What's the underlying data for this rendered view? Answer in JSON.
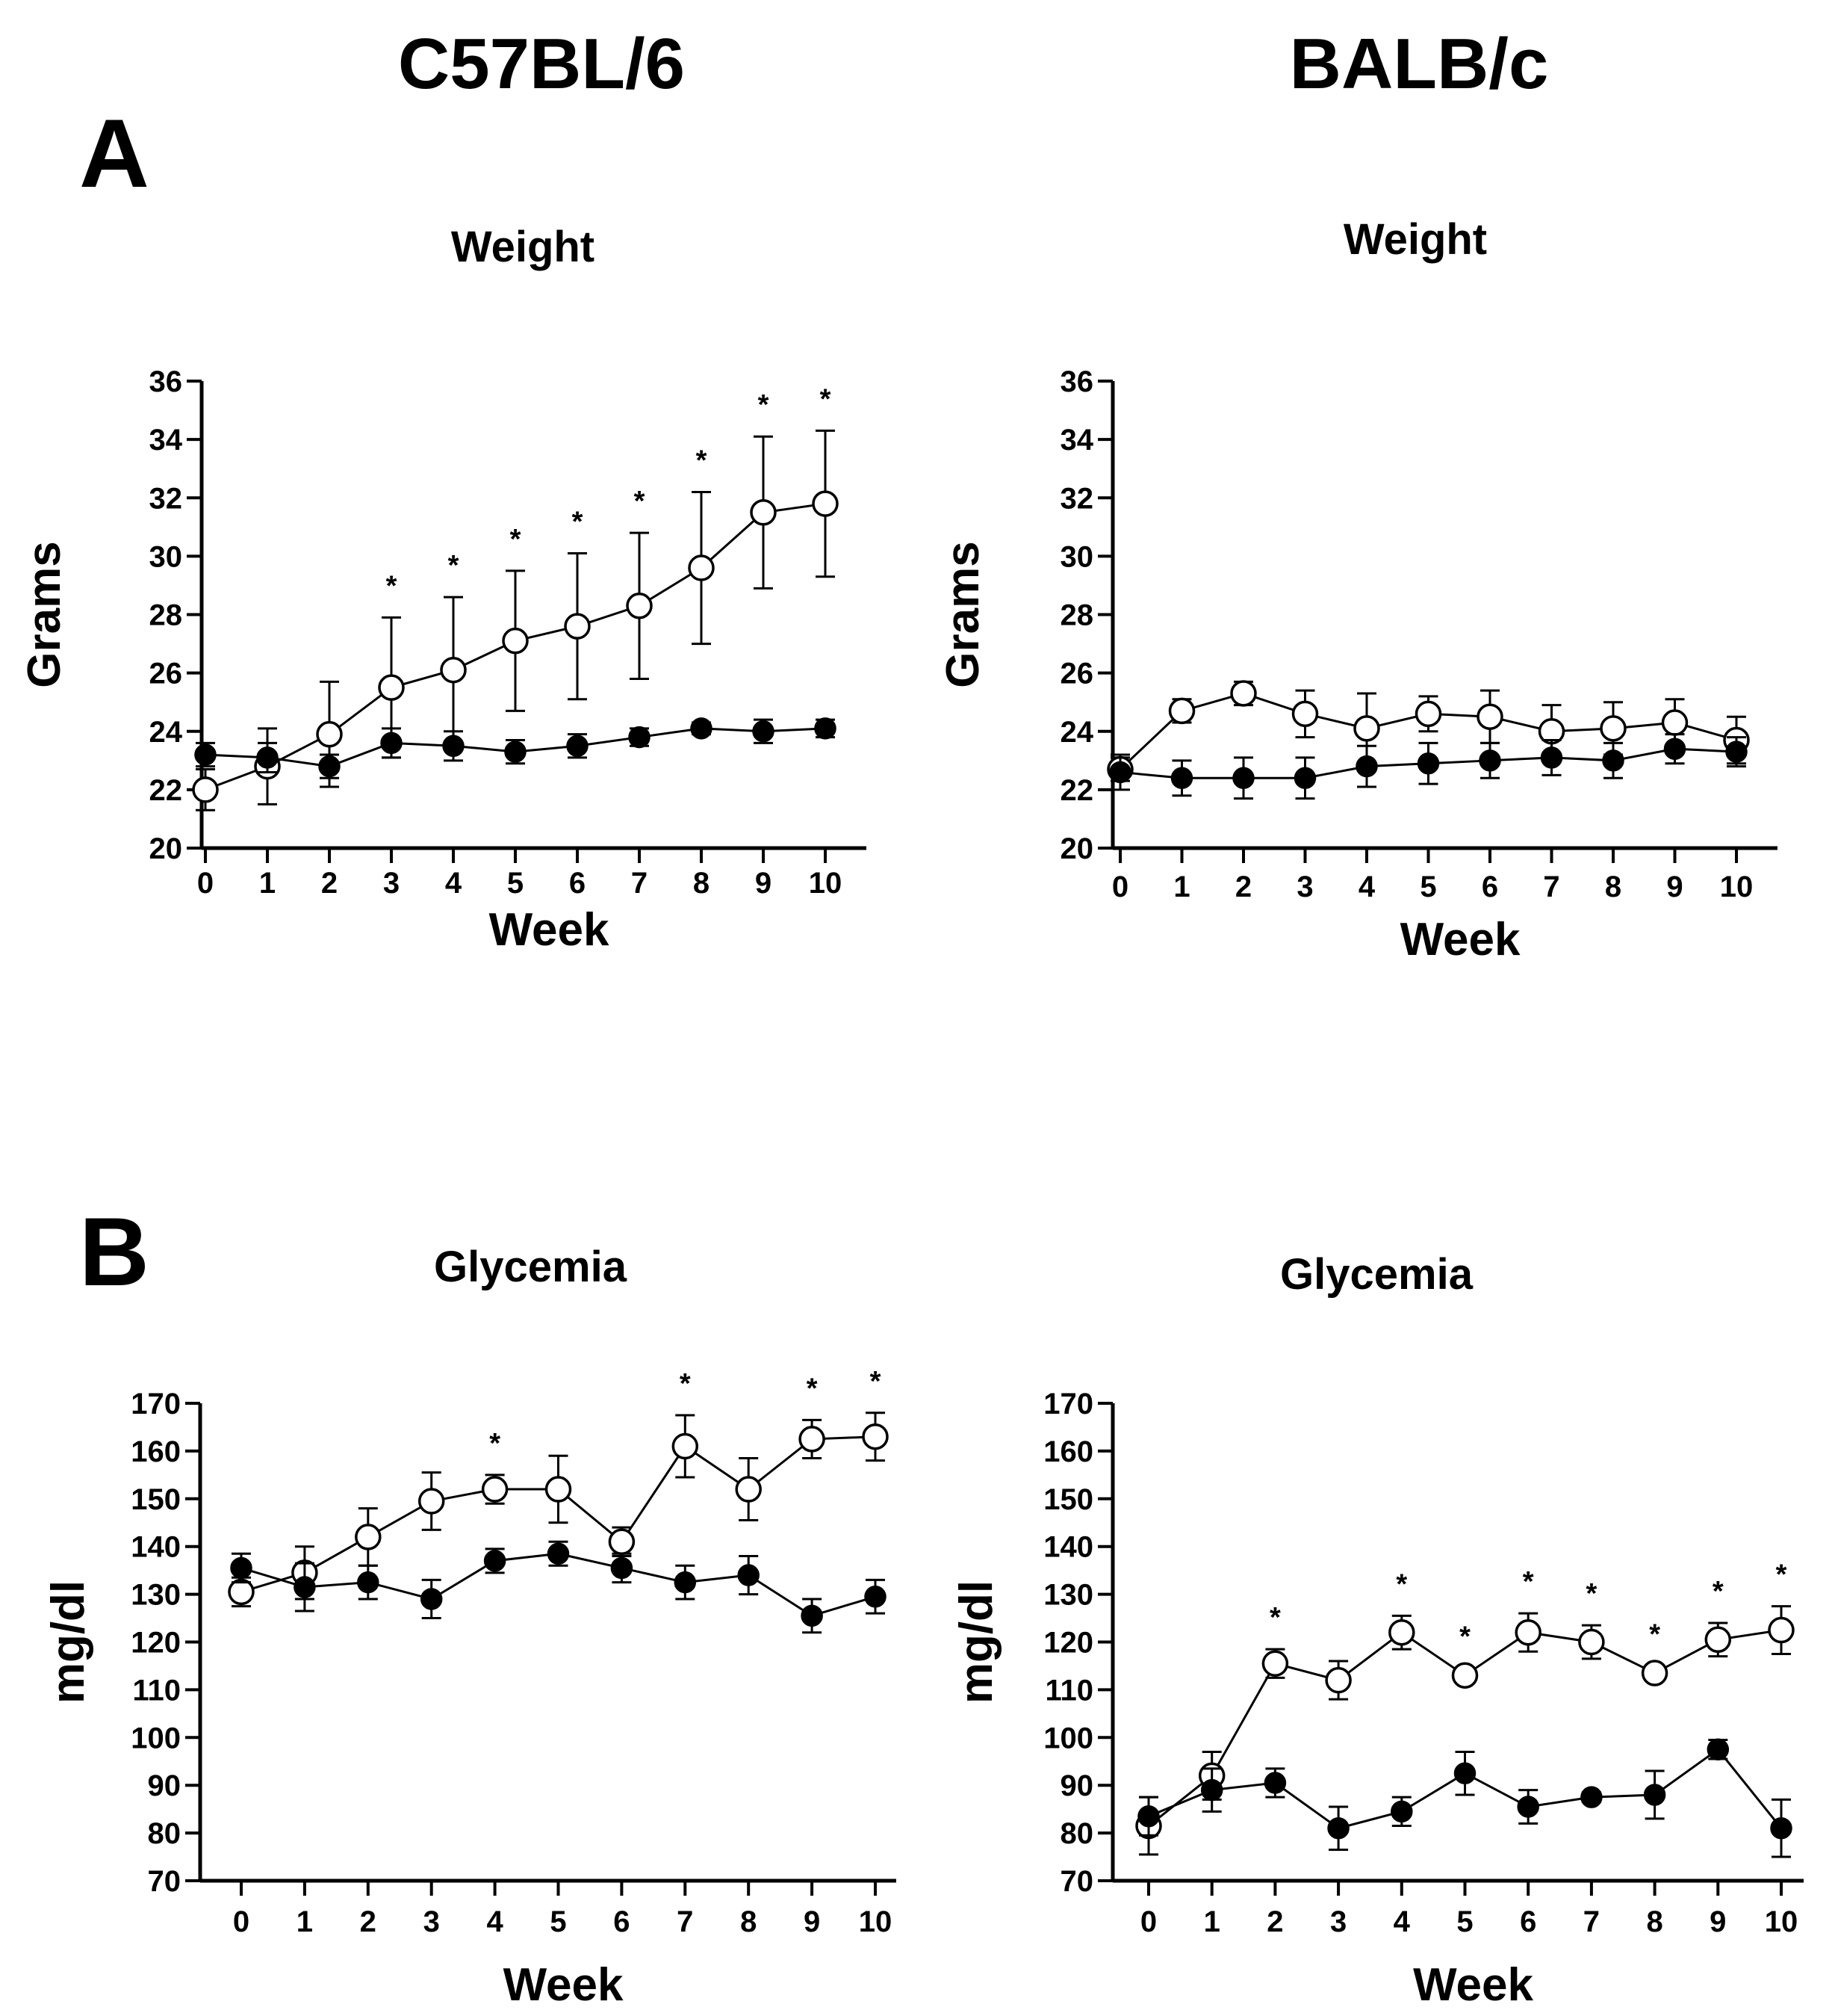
{
  "figure": {
    "column_titles": [
      "C57BL/6",
      "BALB/c"
    ],
    "panel_letters": [
      "A",
      "B"
    ]
  },
  "chart_data": [
    {
      "id": "c57-weight",
      "type": "line",
      "title": "Weight",
      "xlabel": "Week",
      "ylabel": "Grams",
      "x": [
        0,
        1,
        2,
        3,
        4,
        5,
        6,
        7,
        8,
        9,
        10
      ],
      "ylim": [
        20,
        36
      ],
      "yticks": [
        20,
        22,
        24,
        26,
        28,
        30,
        32,
        34,
        36
      ],
      "grid": false,
      "legend": "none",
      "series": [
        {
          "marker": "open-circle",
          "values": [
            22.0,
            22.8,
            23.9,
            25.5,
            26.1,
            27.1,
            27.6,
            28.3,
            29.6,
            31.5,
            31.8
          ],
          "errors": [
            0.7,
            1.3,
            1.8,
            2.4,
            2.5,
            2.4,
            2.5,
            2.5,
            2.6,
            2.6,
            2.5
          ]
        },
        {
          "marker": "filled-circle",
          "values": [
            23.2,
            23.1,
            22.8,
            23.6,
            23.5,
            23.3,
            23.5,
            23.8,
            24.1,
            24.0,
            24.1
          ],
          "errors": [
            0.4,
            0.5,
            0.4,
            0.5,
            0.5,
            0.4,
            0.4,
            0.3,
            0.2,
            0.4,
            0.3
          ]
        }
      ],
      "significance": [
        "",
        "",
        "",
        "*",
        "*",
        "*",
        "*",
        "*",
        "*",
        "*",
        "*"
      ]
    },
    {
      "id": "balbc-weight",
      "type": "line",
      "title": "Weight",
      "xlabel": "Week",
      "ylabel": "Grams",
      "x": [
        0,
        1,
        2,
        3,
        4,
        5,
        6,
        7,
        8,
        9,
        10
      ],
      "ylim": [
        20,
        36
      ],
      "yticks": [
        20,
        22,
        24,
        26,
        28,
        30,
        32,
        34,
        36
      ],
      "grid": false,
      "legend": "none",
      "series": [
        {
          "marker": "open-circle",
          "values": [
            22.7,
            24.7,
            25.3,
            24.6,
            24.1,
            24.6,
            24.5,
            24.0,
            24.1,
            24.3,
            23.7
          ],
          "errors": [
            0.4,
            0.4,
            0.4,
            0.8,
            1.2,
            0.6,
            0.9,
            0.9,
            0.9,
            0.8,
            0.8
          ]
        },
        {
          "marker": "filled-circle",
          "values": [
            22.6,
            22.4,
            22.4,
            22.4,
            22.8,
            22.9,
            23.0,
            23.1,
            23.0,
            23.4,
            23.3
          ],
          "errors": [
            0.6,
            0.6,
            0.7,
            0.7,
            0.7,
            0.7,
            0.6,
            0.6,
            0.6,
            0.5,
            0.5
          ]
        }
      ],
      "significance": [
        "",
        "",
        "",
        "",
        "",
        "",
        "",
        "",
        "",
        "",
        ""
      ]
    },
    {
      "id": "c57-glycemia",
      "type": "line",
      "title": "Glycemia",
      "xlabel": "Week",
      "ylabel": "mg/dl",
      "x": [
        0,
        1,
        2,
        3,
        4,
        5,
        6,
        7,
        8,
        9,
        10
      ],
      "ylim": [
        70,
        170
      ],
      "yticks": [
        70,
        80,
        90,
        100,
        110,
        120,
        130,
        140,
        150,
        160,
        170
      ],
      "grid": false,
      "legend": "none",
      "series": [
        {
          "marker": "open-circle",
          "values": [
            130.5,
            134.5,
            142,
            149.5,
            152,
            152,
            141,
            161,
            152,
            162.5,
            163
          ],
          "errors": [
            3,
            5.5,
            6,
            6,
            3,
            7,
            3,
            6.5,
            6.5,
            4,
            5
          ]
        },
        {
          "marker": "filled-circle",
          "values": [
            135.5,
            131.5,
            132.5,
            129,
            137,
            138.5,
            135.5,
            132.5,
            134,
            125.5,
            129.5
          ],
          "errors": [
            3,
            5,
            3.5,
            4,
            2.5,
            2.5,
            3,
            3.5,
            4,
            3.5,
            3.5
          ]
        }
      ],
      "significance": [
        "",
        "",
        "",
        "",
        "*",
        "",
        "",
        "*",
        "",
        "*",
        "*"
      ]
    },
    {
      "id": "balbc-glycemia",
      "type": "line",
      "title": "Glycemia",
      "xlabel": "Week",
      "ylabel": "mg/dl",
      "x": [
        0,
        1,
        2,
        3,
        4,
        5,
        6,
        7,
        8,
        9,
        10
      ],
      "ylim": [
        70,
        170
      ],
      "yticks": [
        70,
        80,
        90,
        100,
        110,
        120,
        130,
        140,
        150,
        160,
        170
      ],
      "grid": false,
      "legend": "none",
      "series": [
        {
          "marker": "open-circle",
          "values": [
            81.5,
            92,
            115.5,
            112,
            122,
            113,
            122,
            120,
            113.5,
            120.5,
            122.5
          ],
          "errors": [
            6,
            5,
            3,
            4,
            3.5,
            1.5,
            4,
            3.5,
            1.5,
            3.5,
            5
          ]
        },
        {
          "marker": "filled-circle",
          "values": [
            83.5,
            89,
            90.5,
            81,
            84.5,
            92.5,
            85.5,
            87.5,
            88,
            97.5,
            81
          ],
          "errors": [
            4,
            4.5,
            3,
            4.5,
            3,
            4.5,
            3.5,
            1,
            5,
            2,
            6
          ]
        }
      ],
      "significance": [
        "",
        "",
        "*",
        "",
        "*",
        "*",
        "*",
        "*",
        "*",
        "*",
        "*"
      ]
    }
  ]
}
